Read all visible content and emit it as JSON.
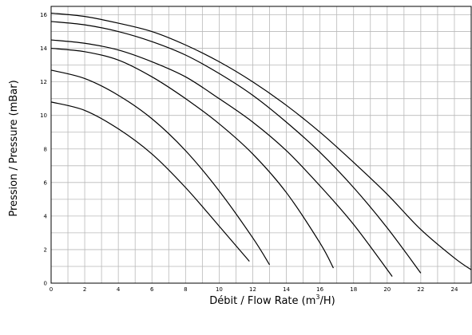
{
  "chart_data": {
    "type": "line",
    "title": "",
    "xlabel": "Débit / Flow Rate (m³/H)",
    "xlabel_parts": {
      "before": "Débit / Flow Rate (m",
      "sup": "3",
      "after": "/H)"
    },
    "ylabel": "Pression / Pressure (mBar)",
    "xlim": [
      0,
      25
    ],
    "ylim": [
      0,
      16.5
    ],
    "x_ticks": [
      0,
      2,
      4,
      6,
      8,
      10,
      12,
      14,
      16,
      18,
      20,
      22,
      24
    ],
    "y_ticks": [
      0,
      2,
      4,
      6,
      8,
      10,
      12,
      14,
      16
    ],
    "grid": true,
    "line_color": "#000000",
    "grid_color": "#b9b9b9",
    "series": [
      {
        "x": [
          0,
          2,
          4,
          6,
          8,
          10,
          11.8
        ],
        "y": [
          10.8,
          10.3,
          9.2,
          7.7,
          5.7,
          3.4,
          1.3
        ]
      },
      {
        "x": [
          0,
          2,
          4,
          6,
          8,
          10,
          12,
          13
        ],
        "y": [
          12.7,
          12.2,
          11.2,
          9.8,
          7.9,
          5.5,
          2.7,
          1.1
        ]
      },
      {
        "x": [
          0,
          2,
          4,
          6,
          8,
          10,
          12,
          14,
          16,
          16.8
        ],
        "y": [
          14.0,
          13.8,
          13.3,
          12.3,
          11.0,
          9.5,
          7.7,
          5.4,
          2.4,
          0.9
        ]
      },
      {
        "x": [
          0,
          2,
          4,
          6,
          8,
          10,
          12,
          14,
          16,
          18,
          20.3
        ],
        "y": [
          14.5,
          14.3,
          13.9,
          13.2,
          12.3,
          11.0,
          9.6,
          7.9,
          5.8,
          3.5,
          0.4
        ]
      },
      {
        "x": [
          0,
          2,
          4,
          6,
          8,
          10,
          12,
          14,
          16,
          18,
          20,
          22
        ],
        "y": [
          15.6,
          15.4,
          15.0,
          14.4,
          13.6,
          12.5,
          11.2,
          9.6,
          7.8,
          5.7,
          3.3,
          0.6
        ]
      },
      {
        "x": [
          0,
          2,
          4,
          6,
          8,
          10,
          12,
          14,
          16,
          18,
          20,
          22,
          24,
          25
        ],
        "y": [
          16.1,
          15.9,
          15.5,
          15.0,
          14.2,
          13.2,
          12.0,
          10.6,
          9.0,
          7.2,
          5.3,
          3.2,
          1.5,
          0.8
        ]
      }
    ]
  }
}
